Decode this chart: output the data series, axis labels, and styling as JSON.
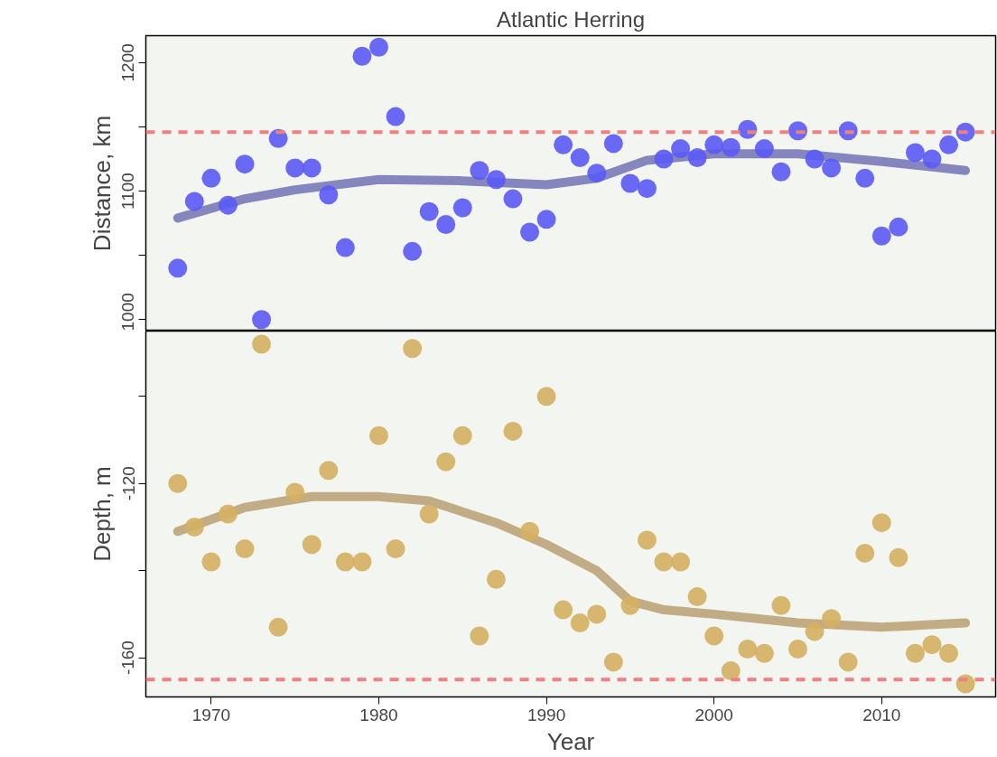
{
  "chart_data": [
    {
      "type": "scatter",
      "title": "Atlantic Herring",
      "ylabel": "Distance, km",
      "tick_labels": "y",
      "grid": false,
      "xlim": [
        1966.1,
        2016.8
      ],
      "ylim": [
        991,
        1221
      ],
      "yticks": [
        1000,
        {
          "value": 1050,
          "label": null
        },
        1100,
        {
          "value": 1150,
          "label": null
        },
        1200
      ],
      "x": [
        1968,
        1969,
        1970,
        1971,
        1972,
        1973,
        1974,
        1975,
        1976,
        1977,
        1978,
        1979,
        1980,
        1981,
        1982,
        1983,
        1984,
        1985,
        1986,
        1987,
        1988,
        1989,
        1990,
        1991,
        1992,
        1993,
        1994,
        1995,
        1996,
        1997,
        1998,
        1999,
        2000,
        2001,
        2002,
        2003,
        2004,
        2005,
        2006,
        2007,
        2008,
        2009,
        2010,
        2011,
        2012,
        2013,
        2014,
        2015
      ],
      "series": [
        {
          "marker": "circle",
          "color": "#5a5af5",
          "values": [
            1040,
            1092,
            1110,
            1089,
            1121,
            1000,
            1141,
            1118,
            1118,
            1097,
            1056,
            1205,
            1212,
            1158,
            1053,
            1084,
            1074,
            1087,
            1116,
            1109,
            1094,
            1068,
            1078,
            1136,
            1126,
            1114,
            1137,
            1106,
            1102,
            1125,
            1133,
            1126,
            1136,
            1134,
            1148,
            1133,
            1115,
            1147,
            1125,
            1118,
            1147,
            1110,
            1065,
            1072,
            1130,
            1125,
            1136,
            1146
          ]
        },
        {
          "type": "line",
          "marker": "none",
          "color": "#7a7ab8",
          "line_style": "solid",
          "x": [
            1968,
            1972,
            1975,
            1980,
            1985,
            1990,
            1993,
            1996,
            2000,
            2005,
            2010,
            2015
          ],
          "values": [
            1079,
            1094,
            1101,
            1109,
            1108,
            1105,
            1110,
            1124,
            1129,
            1129,
            1123,
            1116
          ]
        }
      ],
      "ref_lines": [
        {
          "axis": "y",
          "value": 1146,
          "color": "#f08080",
          "line_style": "dashed"
        }
      ]
    },
    {
      "type": "scatter",
      "xlabel": "Year",
      "ylabel": "Depth, m",
      "grid": false,
      "xlim": [
        1966.1,
        2016.8
      ],
      "xticks": [
        1970,
        1980,
        1990,
        2000,
        2010
      ],
      "ylim": [
        -169,
        -85
      ],
      "yticks": [
        {
          "value": -100,
          "label": null
        },
        -120,
        {
          "value": -140,
          "label": null
        },
        -160
      ],
      "x": [
        1968,
        1969,
        1970,
        1971,
        1972,
        1973,
        1974,
        1975,
        1976,
        1977,
        1978,
        1979,
        1980,
        1981,
        1982,
        1983,
        1984,
        1985,
        1986,
        1987,
        1988,
        1989,
        1990,
        1991,
        1992,
        1993,
        1994,
        1995,
        1996,
        1997,
        1998,
        1999,
        2000,
        2001,
        2002,
        2003,
        2004,
        2005,
        2006,
        2007,
        2008,
        2009,
        2010,
        2011,
        2012,
        2013,
        2014,
        2015
      ],
      "series": [
        {
          "marker": "circle",
          "color": "#d4b060",
          "values": [
            -120,
            -130,
            -138,
            -127,
            -135,
            -88,
            -153,
            -122,
            -134,
            -117,
            -138,
            -138,
            -109,
            -135,
            -89,
            -127,
            -115,
            -109,
            -155,
            -142,
            -108,
            -131,
            -100,
            -149,
            -152,
            -150,
            -161,
            -148,
            -133,
            -138,
            -138,
            -146,
            -155,
            -163,
            -158,
            -159,
            -148,
            -158,
            -154,
            -151,
            -161,
            -136,
            -129,
            -137,
            -159,
            -157,
            -159,
            -166
          ]
        },
        {
          "type": "line",
          "marker": "none",
          "color": "#bba47a",
          "line_style": "solid",
          "x": [
            1968,
            1972,
            1976,
            1980,
            1983,
            1987,
            1990,
            1993,
            1995,
            1997,
            2000,
            2005,
            2010,
            2015
          ],
          "values": [
            -131,
            -125.5,
            -123,
            -123,
            -124,
            -129,
            -134,
            -140,
            -147,
            -149,
            -150,
            -152,
            -153,
            -152
          ]
        }
      ],
      "ref_lines": [
        {
          "axis": "y",
          "value": -165,
          "color": "#f08080",
          "line_style": "dashed"
        }
      ]
    }
  ]
}
